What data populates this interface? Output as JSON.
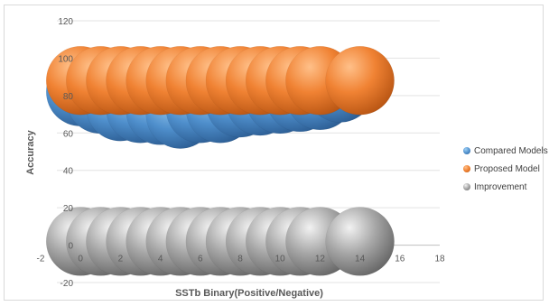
{
  "chart_data": {
    "type": "bubble",
    "title": "",
    "xlabel": "SSTb Binary(Positive/Negative)",
    "ylabel": "Accuracy",
    "xlim": [
      -2,
      18
    ],
    "ylim": [
      -20,
      120
    ],
    "xticks": [
      -2,
      0,
      2,
      4,
      6,
      8,
      10,
      12,
      14,
      16,
      18
    ],
    "yticks": [
      -20,
      0,
      20,
      40,
      60,
      80,
      100,
      120
    ],
    "grid": true,
    "legend": "right",
    "series": [
      {
        "name": "Compared Models",
        "color": "#5b9bd5",
        "points": [
          {
            "x": 0,
            "y": 82
          },
          {
            "x": 1,
            "y": 78
          },
          {
            "x": 2,
            "y": 74
          },
          {
            "x": 3,
            "y": 73
          },
          {
            "x": 4,
            "y": 72
          },
          {
            "x": 5,
            "y": 70
          },
          {
            "x": 6,
            "y": 73
          },
          {
            "x": 7,
            "y": 73
          },
          {
            "x": 8,
            "y": 76
          },
          {
            "x": 9,
            "y": 77
          },
          {
            "x": 10,
            "y": 78
          },
          {
            "x": 11,
            "y": 79
          },
          {
            "x": 12,
            "y": 80
          },
          {
            "x": 13,
            "y": 84
          }
        ]
      },
      {
        "name": "Proposed Model",
        "color": "#ed7d31",
        "points": [
          {
            "x": 0,
            "y": 88
          },
          {
            "x": 1,
            "y": 88
          },
          {
            "x": 2,
            "y": 88
          },
          {
            "x": 3,
            "y": 88
          },
          {
            "x": 4,
            "y": 88
          },
          {
            "x": 5,
            "y": 88
          },
          {
            "x": 6,
            "y": 88
          },
          {
            "x": 7,
            "y": 88
          },
          {
            "x": 8,
            "y": 88
          },
          {
            "x": 9,
            "y": 88
          },
          {
            "x": 10,
            "y": 88
          },
          {
            "x": 11,
            "y": 88
          },
          {
            "x": 12,
            "y": 88
          },
          {
            "x": 14,
            "y": 88
          }
        ]
      },
      {
        "name": "Improvement",
        "color": "#a5a5a5",
        "points": [
          {
            "x": 0,
            "y": 2
          },
          {
            "x": 1,
            "y": 2
          },
          {
            "x": 2,
            "y": 2
          },
          {
            "x": 3,
            "y": 2
          },
          {
            "x": 4,
            "y": 2
          },
          {
            "x": 5,
            "y": 2
          },
          {
            "x": 6,
            "y": 2
          },
          {
            "x": 7,
            "y": 2
          },
          {
            "x": 8,
            "y": 2
          },
          {
            "x": 9,
            "y": 2
          },
          {
            "x": 10,
            "y": 2
          },
          {
            "x": 11,
            "y": 2
          },
          {
            "x": 12,
            "y": 2
          },
          {
            "x": 14,
            "y": 2
          }
        ]
      }
    ]
  }
}
